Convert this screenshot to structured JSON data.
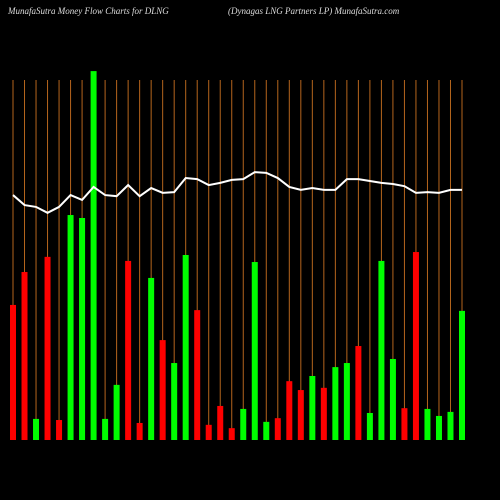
{
  "chart_data": {
    "type": "bar",
    "title": "MunafaSutra  Money Flow  Charts for DLNG",
    "subtitle": "(Dynagas LNG Partners LP) MunafaSutra.com",
    "ylim": [
      0,
      100
    ],
    "grid": true,
    "grid_color": "#b5651d",
    "series": [
      {
        "type": "bar",
        "values": [
          36.5,
          45.4,
          5.7,
          49.5,
          5.4,
          60.8,
          60.0,
          99.7,
          5.7,
          14.9,
          48.4,
          4.6,
          43.8,
          27.0,
          20.8,
          50.0,
          35.1,
          4.1,
          9.2,
          3.2,
          8.4,
          48.1,
          4.9,
          5.9,
          15.9,
          13.5,
          17.3,
          14.1,
          19.7,
          20.8,
          25.4,
          7.3,
          48.4,
          21.9,
          8.6,
          50.8,
          8.4,
          6.5,
          7.6,
          34.9
        ],
        "colors": [
          "#ff0000",
          "#ff0000",
          "#00ff00",
          "#ff0000",
          "#ff0000",
          "#00ff00",
          "#00ff00",
          "#00ff00",
          "#00ff00",
          "#00ff00",
          "#ff0000",
          "#ff0000",
          "#00ff00",
          "#ff0000",
          "#00ff00",
          "#00ff00",
          "#ff0000",
          "#ff0000",
          "#ff0000",
          "#ff0000",
          "#00ff00",
          "#00ff00",
          "#00ff00",
          "#ff0000",
          "#ff0000",
          "#ff0000",
          "#00ff00",
          "#ff0000",
          "#00ff00",
          "#00ff00",
          "#ff0000",
          "#00ff00",
          "#00ff00",
          "#00ff00",
          "#ff0000",
          "#ff0000",
          "#00ff00",
          "#00ff00",
          "#00ff00",
          "#00ff00"
        ]
      },
      {
        "type": "line",
        "color": "#ffffff",
        "values": [
          66.2,
          63.5,
          63.0,
          61.4,
          63.0,
          66.2,
          64.9,
          68.4,
          66.2,
          65.9,
          68.9,
          65.9,
          68.1,
          66.8,
          67.0,
          70.8,
          70.5,
          68.9,
          69.5,
          70.3,
          70.5,
          72.4,
          72.2,
          70.8,
          68.4,
          67.6,
          68.1,
          67.6,
          67.6,
          70.5,
          70.5,
          70.0,
          69.5,
          69.2,
          68.6,
          66.8,
          67.0,
          66.8,
          67.6,
          67.6
        ]
      }
    ]
  }
}
